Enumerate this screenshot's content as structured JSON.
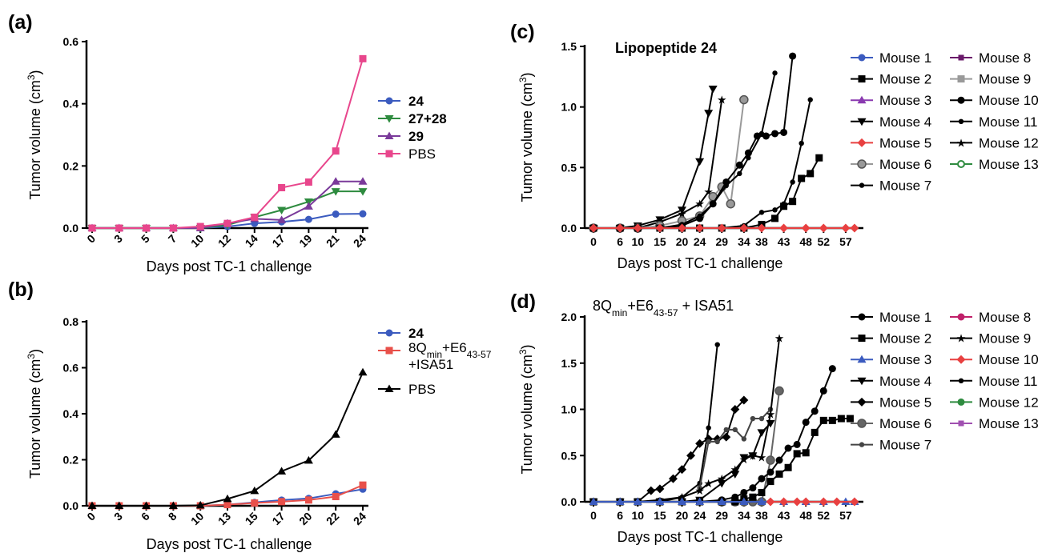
{
  "chart_data": [
    {
      "panel": "(a)",
      "type": "line",
      "xlabel": "Days post TC-1 challenge",
      "ylabel": "Tumor volume (cm³)",
      "ylim": [
        0,
        0.6
      ],
      "yticks": [
        "0.0",
        "0.2",
        "0.4",
        "0.6"
      ],
      "categories": [
        "0",
        "3",
        "5",
        "7",
        "10",
        "12",
        "14",
        "17",
        "19",
        "21",
        "24"
      ],
      "series": [
        {
          "name": "24",
          "bold": true,
          "color": "#3b5bbf",
          "marker": "circle",
          "values": [
            0,
            0,
            0,
            0,
            0,
            0.005,
            0.015,
            0.02,
            0.028,
            0.045,
            0.046
          ]
        },
        {
          "name": "27+28",
          "bold": true,
          "color": "#2e8b3f",
          "marker": "triangle-down",
          "values": [
            0,
            0,
            0,
            0,
            0,
            0.01,
            0.035,
            0.058,
            0.085,
            0.118,
            0.118
          ]
        },
        {
          "name": "29",
          "bold": true,
          "color": "#7a3a9a",
          "marker": "triangle-up",
          "values": [
            0,
            0,
            0,
            0,
            0,
            0.015,
            0.03,
            0.026,
            0.07,
            0.15,
            0.15
          ]
        },
        {
          "name": "PBS",
          "bold": false,
          "color": "#e8468c",
          "marker": "square",
          "values": [
            0,
            0,
            0,
            0,
            0.005,
            0.015,
            0.035,
            0.13,
            0.148,
            0.248,
            0.545
          ]
        }
      ]
    },
    {
      "panel": "(b)",
      "type": "line",
      "xlabel": "Days post TC-1 challenge",
      "ylabel": "Tumor volume (cm³)",
      "ylim": [
        0,
        0.8
      ],
      "yticks": [
        "0.0",
        "0.2",
        "0.4",
        "0.6",
        "0.8"
      ],
      "categories": [
        "0",
        "3",
        "6",
        "8",
        "10",
        "13",
        "15",
        "17",
        "20",
        "22",
        "24"
      ],
      "series": [
        {
          "name": "24",
          "bold": true,
          "color": "#3b5bbf",
          "marker": "circle",
          "values": [
            0,
            0,
            0,
            0,
            0,
            0.005,
            0.015,
            0.025,
            0.032,
            0.052,
            0.072
          ]
        },
        {
          "name": "8Qmin+E643-57 +ISA51",
          "bold": false,
          "color": "#e8504a",
          "marker": "square",
          "values": [
            0,
            0,
            0,
            0,
            0,
            0.005,
            0.012,
            0.018,
            0.025,
            0.04,
            0.09
          ]
        },
        {
          "name": "PBS",
          "bold": false,
          "color": "#000000",
          "marker": "triangle-up",
          "values": [
            0,
            0,
            0,
            0,
            0.002,
            0.03,
            0.065,
            0.15,
            0.197,
            0.31,
            0.58
          ]
        }
      ]
    },
    {
      "panel": "(c)",
      "type": "line",
      "title": "Lipopeptide 24",
      "xlabel": "Days post TC-1 challenge",
      "ylabel": "Tumor volume (cm³)",
      "ylim": [
        0,
        1.5
      ],
      "xlim": [
        -2,
        61
      ],
      "xticks": [
        0,
        6,
        10,
        15,
        20,
        24,
        29,
        34,
        38,
        43,
        48,
        52,
        57
      ],
      "yticks": [
        "0.0",
        "0.5",
        "1.0",
        "1.5"
      ],
      "legend": [
        {
          "name": "Mouse 1",
          "color": "#3b5bbf",
          "marker": "circle"
        },
        {
          "name": "Mouse 2",
          "color": "#000000",
          "marker": "square"
        },
        {
          "name": "Mouse 3",
          "color": "#8a3ab0",
          "marker": "triangle-up"
        },
        {
          "name": "Mouse 4",
          "color": "#000000",
          "marker": "triangle-down"
        },
        {
          "name": "Mouse 5",
          "color": "#e84040",
          "marker": "diamond"
        },
        {
          "name": "Mouse 6",
          "color": "#999999",
          "marker": "circle-ring"
        },
        {
          "name": "Mouse 7",
          "color": "#000000",
          "marker": "small-circle"
        },
        {
          "name": "Mouse 8",
          "color": "#6a1a6a",
          "marker": "square-small"
        },
        {
          "name": "Mouse 9",
          "color": "#999999",
          "marker": "square"
        },
        {
          "name": "Mouse 10",
          "color": "#000000",
          "marker": "circle"
        },
        {
          "name": "Mouse 11",
          "color": "#000000",
          "marker": "small-circle"
        },
        {
          "name": "Mouse 12",
          "color": "#000000",
          "marker": "star"
        },
        {
          "name": "Mouse 13",
          "color": "#2e8b3f",
          "marker": "half-circle"
        }
      ],
      "lines": [
        {
          "color": "#000000",
          "marker": "triangle-down",
          "x": [
            0,
            6,
            10,
            15,
            20,
            24,
            26,
            27
          ],
          "y": [
            0,
            0,
            0.02,
            0.07,
            0.15,
            0.55,
            0.95,
            1.15
          ]
        },
        {
          "color": "#000000",
          "marker": "star",
          "x": [
            0,
            6,
            10,
            15,
            20,
            24,
            26,
            29
          ],
          "y": [
            0,
            0,
            0,
            0.05,
            0.12,
            0.2,
            0.3,
            1.06
          ]
        },
        {
          "color": "#999999",
          "marker": "circle-ring",
          "x": [
            0,
            6,
            10,
            15,
            20,
            24,
            27,
            29,
            31,
            34
          ],
          "y": [
            0,
            0,
            0,
            0.02,
            0.06,
            0.1,
            0.26,
            0.34,
            0.2,
            1.06
          ]
        },
        {
          "color": "#000000",
          "marker": "circle",
          "x": [
            0,
            6,
            10,
            15,
            20,
            24,
            27,
            30,
            33,
            35,
            37,
            39,
            41,
            43,
            45
          ],
          "y": [
            0,
            0,
            0,
            0,
            0.02,
            0.08,
            0.2,
            0.38,
            0.52,
            0.62,
            0.76,
            0.76,
            0.78,
            0.79,
            1.42
          ]
        },
        {
          "color": "#000000",
          "marker": "small-circle",
          "x": [
            0,
            6,
            10,
            15,
            20,
            24,
            27,
            30,
            33,
            35,
            38,
            41
          ],
          "y": [
            0,
            0,
            0,
            0,
            0.03,
            0.1,
            0.2,
            0.35,
            0.45,
            0.58,
            0.78,
            1.28
          ]
        },
        {
          "color": "#000000",
          "marker": "small-circle",
          "x": [
            0,
            6,
            10,
            15,
            20,
            24,
            29,
            34,
            38,
            41,
            43,
            45,
            47,
            49
          ],
          "y": [
            0,
            0,
            0,
            0,
            0,
            0,
            0,
            0.02,
            0.13,
            0.15,
            0.2,
            0.38,
            0.7,
            1.06
          ]
        },
        {
          "color": "#000000",
          "marker": "square",
          "x": [
            0,
            6,
            10,
            15,
            20,
            24,
            29,
            34,
            38,
            41,
            43,
            45,
            47,
            49,
            51
          ],
          "y": [
            0,
            0,
            0,
            0,
            0,
            0,
            0,
            0,
            0.03,
            0.08,
            0.18,
            0.22,
            0.41,
            0.45,
            0.58
          ]
        },
        {
          "color": "#e84040",
          "marker": "diamond",
          "x": [
            0,
            6,
            10,
            15,
            20,
            24,
            29,
            34,
            38,
            43,
            48,
            52,
            57,
            59
          ],
          "y": [
            0,
            0,
            0,
            0,
            0,
            0,
            0,
            0,
            0,
            0,
            0,
            0,
            0,
            0
          ]
        }
      ]
    },
    {
      "panel": "(d)",
      "type": "line",
      "title": "8Qmin+E643-57 + ISA51",
      "xlabel": "Days post TC-1 challenge",
      "ylabel": "Tumor volume (cm³)",
      "ylim": [
        0,
        2.0
      ],
      "xlim": [
        -2,
        61
      ],
      "xticks": [
        0,
        6,
        10,
        15,
        20,
        24,
        29,
        34,
        38,
        43,
        48,
        52,
        57
      ],
      "yticks": [
        "0.0",
        "0.5",
        "1.0",
        "1.5",
        "2.0"
      ],
      "legend": [
        {
          "name": "Mouse 1",
          "color": "#000000",
          "marker": "circle"
        },
        {
          "name": "Mouse 2",
          "color": "#000000",
          "marker": "square"
        },
        {
          "name": "Mouse 3",
          "color": "#3b5bbf",
          "marker": "triangle-up"
        },
        {
          "name": "Mouse 4",
          "color": "#000000",
          "marker": "triangle-down"
        },
        {
          "name": "Mouse 5",
          "color": "#000000",
          "marker": "diamond"
        },
        {
          "name": "Mouse 6",
          "color": "#666666",
          "marker": "circle-ring"
        },
        {
          "name": "Mouse 7",
          "color": "#444444",
          "marker": "small-circle"
        },
        {
          "name": "Mouse 8",
          "color": "#c0206a",
          "marker": "circle"
        },
        {
          "name": "Mouse 9",
          "color": "#000000",
          "marker": "star"
        },
        {
          "name": "Mouse 10",
          "color": "#e84040",
          "marker": "diamond"
        },
        {
          "name": "Mouse 11",
          "color": "#000000",
          "marker": "small-circle"
        },
        {
          "name": "Mouse 12",
          "color": "#2e8b3f",
          "marker": "circle"
        },
        {
          "name": "Mouse 13",
          "color": "#a050b0",
          "marker": "square-small"
        }
      ],
      "lines": [
        {
          "color": "#000000",
          "marker": "small-circle",
          "x": [
            0,
            6,
            10,
            15,
            20,
            24,
            26,
            28
          ],
          "y": [
            0,
            0,
            0,
            0.02,
            0.05,
            0.2,
            0.8,
            1.7
          ]
        },
        {
          "color": "#000000",
          "marker": "diamond",
          "x": [
            0,
            6,
            10,
            13,
            15,
            18,
            20,
            22,
            24,
            26,
            28,
            30,
            32,
            34
          ],
          "y": [
            0,
            0,
            0,
            0.12,
            0.14,
            0.25,
            0.35,
            0.5,
            0.63,
            0.68,
            0.68,
            0.7,
            1.0,
            1.1
          ]
        },
        {
          "color": "#444444",
          "marker": "small-circle",
          "x": [
            24,
            26,
            28,
            30,
            32,
            34,
            36,
            38,
            40
          ],
          "y": [
            0.15,
            0.65,
            0.65,
            0.78,
            0.78,
            0.68,
            0.9,
            0.9,
            1.0
          ]
        },
        {
          "color": "#000000",
          "marker": "star",
          "x": [
            0,
            6,
            10,
            15,
            20,
            24,
            26,
            29,
            32,
            34,
            36,
            38,
            40,
            42
          ],
          "y": [
            0,
            0,
            0,
            0,
            0.05,
            0.12,
            0.2,
            0.25,
            0.35,
            0.46,
            0.5,
            0.48,
            0.95,
            1.77
          ]
        },
        {
          "color": "#000000",
          "marker": "triangle-down",
          "x": [
            0,
            6,
            10,
            15,
            20,
            24,
            29,
            32,
            34,
            36,
            38,
            40
          ],
          "y": [
            0,
            0,
            0,
            0,
            0,
            0.02,
            0.2,
            0.3,
            0.48,
            0.5,
            0.75,
            0.85
          ]
        },
        {
          "color": "#666666",
          "marker": "circle-ring",
          "x": [
            29,
            32,
            34,
            36,
            38,
            40,
            42
          ],
          "y": [
            0,
            0,
            0,
            0,
            0,
            0.45,
            1.2
          ]
        },
        {
          "color": "#000000",
          "marker": "circle",
          "x": [
            0,
            6,
            10,
            15,
            20,
            24,
            29,
            32,
            34,
            36,
            38,
            40,
            42,
            44,
            46,
            48,
            50,
            52,
            54
          ],
          "y": [
            0,
            0,
            0,
            0,
            0,
            0,
            0.02,
            0.05,
            0.1,
            0.15,
            0.25,
            0.32,
            0.45,
            0.58,
            0.62,
            0.86,
            0.98,
            1.2,
            1.44
          ]
        },
        {
          "color": "#000000",
          "marker": "square",
          "x": [
            0,
            6,
            10,
            15,
            20,
            24,
            29,
            32,
            34,
            36,
            38,
            40,
            42,
            44,
            46,
            48,
            50,
            52,
            54,
            56,
            58
          ],
          "y": [
            0,
            0,
            0,
            0,
            0,
            0,
            0,
            0,
            0.03,
            0.05,
            0.1,
            0.22,
            0.3,
            0.37,
            0.52,
            0.53,
            0.75,
            0.88,
            0.88,
            0.9,
            0.9
          ]
        },
        {
          "color": "#3b5bbf",
          "marker": "triangle-up",
          "x": [
            0,
            6,
            10,
            15,
            20,
            24,
            29,
            34,
            38,
            43,
            48,
            52,
            57,
            59
          ],
          "y": [
            0,
            0,
            0,
            0,
            0,
            0,
            0,
            0,
            0,
            0,
            0,
            0,
            0,
            0
          ]
        },
        {
          "color": "#e84040",
          "marker": "diamond",
          "x": [
            40,
            43,
            46,
            48,
            52,
            55,
            59
          ],
          "y": [
            0,
            0,
            0,
            0,
            0,
            0,
            0
          ]
        }
      ]
    }
  ],
  "panels": {
    "a": "(a)",
    "b": "(b)",
    "c": "(c)",
    "d": "(d)"
  }
}
